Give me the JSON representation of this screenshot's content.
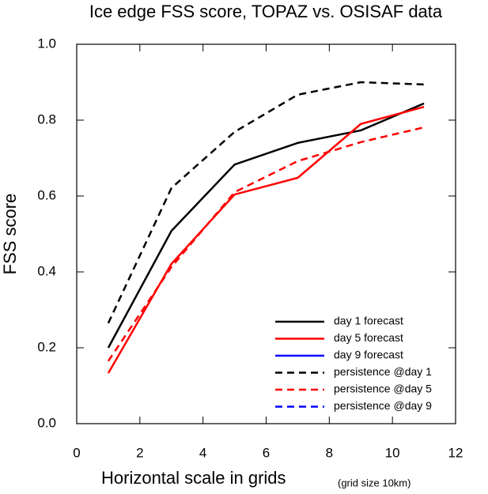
{
  "chart_data": {
    "type": "line",
    "title": "Ice edge FSS score, TOPAZ vs. OSISAF data",
    "xlabel": "Horizontal scale in grids",
    "xlabel_note": "(grid size 10km)",
    "ylabel": "FSS score",
    "x": [
      1,
      3,
      5,
      7,
      9,
      11
    ],
    "series": [
      {
        "name": "day 1 forecast",
        "color": "#000000",
        "dashed": false,
        "values": [
          0.2,
          0.508,
          0.683,
          0.74,
          0.773,
          0.844
        ]
      },
      {
        "name": "day 5 forecast",
        "color": "#ff0000",
        "dashed": false,
        "values": [
          0.133,
          0.421,
          0.604,
          0.648,
          0.79,
          0.835
        ]
      },
      {
        "name": "day 9 forecast",
        "color": "#0000ff",
        "dashed": false,
        "values": [
          null,
          null,
          null,
          null,
          null,
          null
        ]
      },
      {
        "name": "persistence @day 1",
        "color": "#000000",
        "dashed": true,
        "values": [
          0.265,
          0.621,
          0.769,
          0.867,
          0.9,
          0.894
        ]
      },
      {
        "name": "persistence @day 5",
        "color": "#ff0000",
        "dashed": true,
        "values": [
          0.165,
          0.413,
          0.61,
          0.692,
          0.742,
          0.781
        ]
      },
      {
        "name": "persistence @day 9",
        "color": "#0000ff",
        "dashed": true,
        "values": [
          null,
          null,
          null,
          null,
          null,
          null
        ]
      }
    ],
    "xlim": [
      0,
      12
    ],
    "xticks": [
      0,
      2,
      4,
      6,
      8,
      10,
      12
    ],
    "ylim": [
      0,
      1
    ],
    "yticks": [
      {
        "value": 0,
        "label": "0.0"
      },
      0.2,
      0.4,
      0.6,
      0.8,
      {
        "value": 1,
        "label": "1.0"
      }
    ],
    "legend": "lower right"
  }
}
